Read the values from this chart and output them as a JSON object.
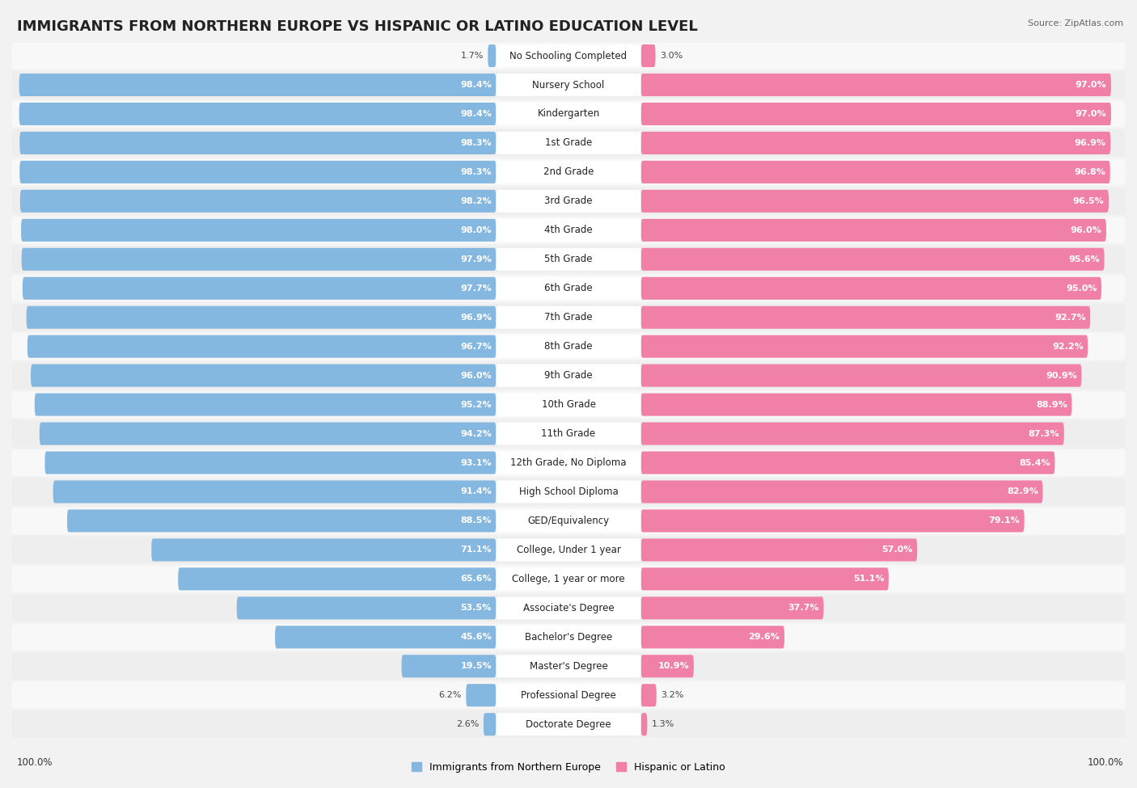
{
  "title": "IMMIGRANTS FROM NORTHERN EUROPE VS HISPANIC OR LATINO EDUCATION LEVEL",
  "source": "Source: ZipAtlas.com",
  "categories": [
    "No Schooling Completed",
    "Nursery School",
    "Kindergarten",
    "1st Grade",
    "2nd Grade",
    "3rd Grade",
    "4th Grade",
    "5th Grade",
    "6th Grade",
    "7th Grade",
    "8th Grade",
    "9th Grade",
    "10th Grade",
    "11th Grade",
    "12th Grade, No Diploma",
    "High School Diploma",
    "GED/Equivalency",
    "College, Under 1 year",
    "College, 1 year or more",
    "Associate's Degree",
    "Bachelor's Degree",
    "Master's Degree",
    "Professional Degree",
    "Doctorate Degree"
  ],
  "left_values": [
    1.7,
    98.4,
    98.4,
    98.3,
    98.3,
    98.2,
    98.0,
    97.9,
    97.7,
    96.9,
    96.7,
    96.0,
    95.2,
    94.2,
    93.1,
    91.4,
    88.5,
    71.1,
    65.6,
    53.5,
    45.6,
    19.5,
    6.2,
    2.6
  ],
  "right_values": [
    3.0,
    97.0,
    97.0,
    96.9,
    96.8,
    96.5,
    96.0,
    95.6,
    95.0,
    92.7,
    92.2,
    90.9,
    88.9,
    87.3,
    85.4,
    82.9,
    79.1,
    57.0,
    51.1,
    37.7,
    29.6,
    10.9,
    3.2,
    1.3
  ],
  "left_color": "#85b8e0",
  "right_color": "#f080a8",
  "background_color": "#f2f2f2",
  "bar_background": "#e8e8e8",
  "row_bg_light": "#f8f8f8",
  "row_bg_dark": "#eeeeee",
  "title_fontsize": 13,
  "label_fontsize": 8.5,
  "value_fontsize": 8,
  "legend_left": "Immigrants from Northern Europe",
  "legend_right": "Hispanic or Latino"
}
